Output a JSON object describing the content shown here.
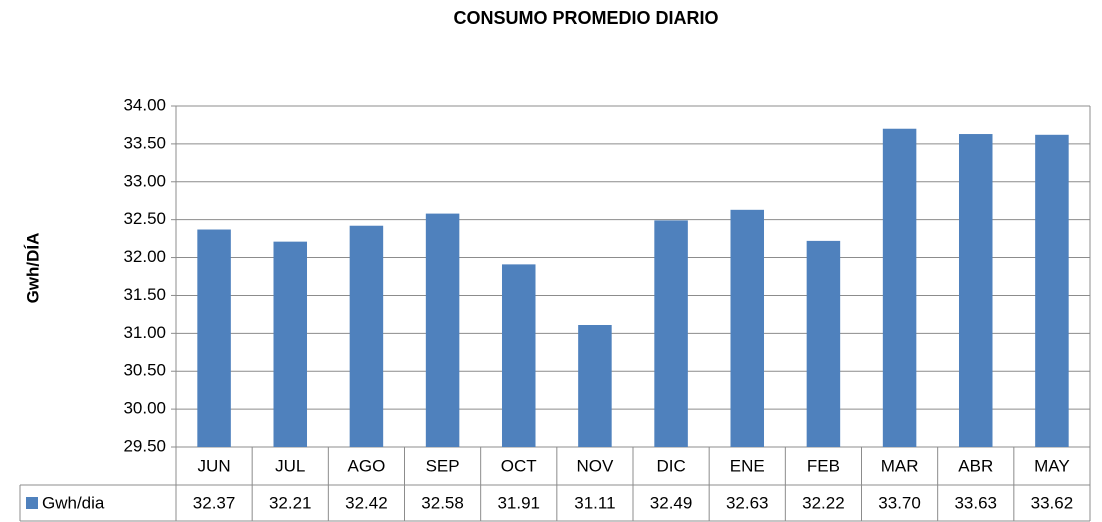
{
  "chart_data": {
    "type": "bar",
    "title": "CONSUMO PROMEDIO DIARIO",
    "y_label": "Gwh/DÍA",
    "categories": [
      "JUN",
      "JUL",
      "AGO",
      "SEP",
      "OCT",
      "NOV",
      "DIC",
      "ENE",
      "FEB",
      "MAR",
      "ABR",
      "MAY"
    ],
    "series": [
      {
        "name": "Gwh/dia",
        "color": "#4f81bd",
        "values": [
          32.37,
          32.21,
          32.42,
          32.58,
          31.91,
          31.11,
          32.49,
          32.63,
          32.22,
          33.7,
          33.63,
          33.62
        ],
        "value_labels": [
          "32.37",
          "32.21",
          "32.42",
          "32.58",
          "31.91",
          "31.11",
          "32.49",
          "32.63",
          "32.22",
          "33.70",
          "33.63",
          "33.62"
        ]
      }
    ],
    "ylim": [
      29.5,
      34
    ],
    "yticks": [
      {
        "value": 29.5,
        "label": "29.50"
      },
      {
        "value": 30,
        "label": "30.00"
      },
      {
        "value": 30.5,
        "label": "30.50"
      },
      {
        "value": 31,
        "label": "31.00"
      },
      {
        "value": 31.5,
        "label": "31.50"
      },
      {
        "value": 32,
        "label": "32.00"
      },
      {
        "value": 32.5,
        "label": "32.50"
      },
      {
        "value": 33,
        "label": "33.00"
      },
      {
        "value": 33.5,
        "label": "33.50"
      },
      {
        "value": 34,
        "label": "34.00"
      }
    ],
    "grid": true
  }
}
